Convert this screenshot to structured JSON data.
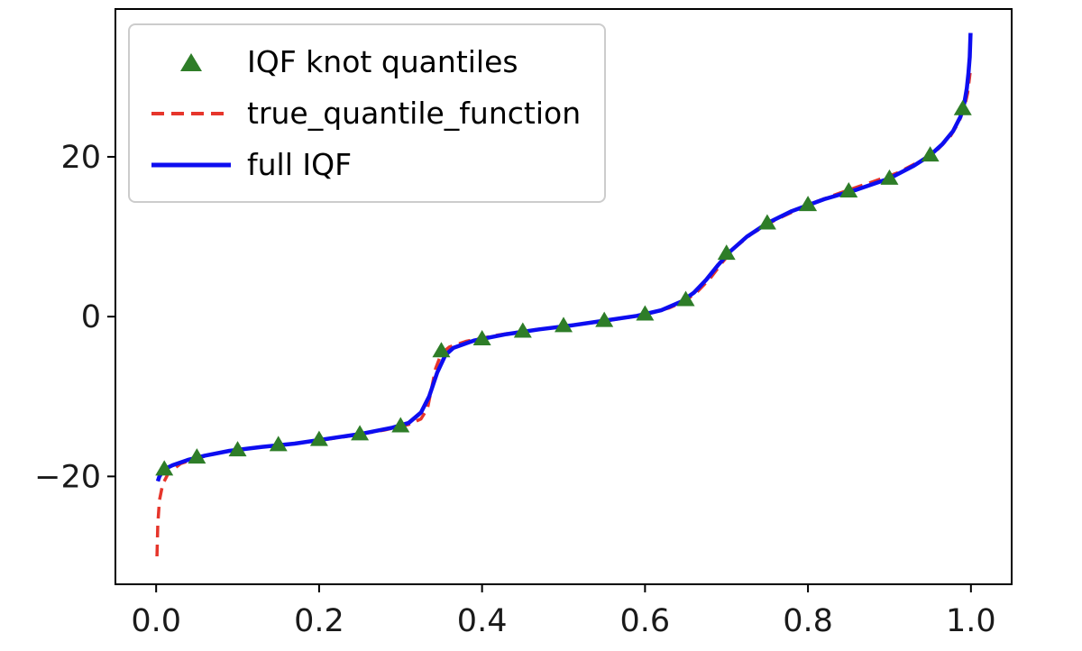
{
  "figure": {
    "background": "#ffffff",
    "frame_color": "#000000",
    "tick_label_color": "#1a1a1a"
  },
  "chart_data": {
    "type": "line",
    "title": "",
    "xlabel": "",
    "ylabel": "",
    "grid": false,
    "xlim": [
      -0.05,
      1.05
    ],
    "ylim": [
      -33.5,
      38.5
    ],
    "xticks": [
      0.0,
      0.2,
      0.4,
      0.6,
      0.8,
      1.0
    ],
    "xtick_labels": [
      "0.0",
      "0.2",
      "0.4",
      "0.6",
      "0.8",
      "1.0"
    ],
    "yticks": [
      -20,
      0,
      20
    ],
    "ytick_labels": [
      "−20",
      "0",
      "20"
    ],
    "legend": {
      "position": "upper left",
      "entries": [
        {
          "label": "IQF knot quantiles",
          "marker": "triangle"
        },
        {
          "label": "true_quantile_function",
          "marker": "dashed-line"
        },
        {
          "label": "full IQF",
          "marker": "solid-line"
        }
      ]
    },
    "series": [
      {
        "name": "IQF knot quantiles",
        "type": "scatter",
        "marker": "triangle",
        "color": "#2e7d28",
        "points": [
          [
            0.01,
            -19.1
          ],
          [
            0.05,
            -17.6
          ],
          [
            0.1,
            -16.7
          ],
          [
            0.15,
            -16.05
          ],
          [
            0.2,
            -15.4
          ],
          [
            0.25,
            -14.7
          ],
          [
            0.3,
            -13.7
          ],
          [
            0.35,
            -4.3
          ],
          [
            0.4,
            -2.8
          ],
          [
            0.45,
            -1.85
          ],
          [
            0.5,
            -1.15
          ],
          [
            0.55,
            -0.5
          ],
          [
            0.6,
            0.3
          ],
          [
            0.65,
            2.1
          ],
          [
            0.7,
            7.9
          ],
          [
            0.75,
            11.7
          ],
          [
            0.8,
            14.0
          ],
          [
            0.85,
            15.7
          ],
          [
            0.9,
            17.3
          ],
          [
            0.95,
            20.2
          ],
          [
            0.99,
            26.0
          ]
        ]
      },
      {
        "name": "true_quantile_function",
        "type": "line",
        "style": "dashed",
        "color": "#e6352b",
        "width": 3.5,
        "points": [
          [
            0.001,
            -30.0
          ],
          [
            0.002,
            -26.0
          ],
          [
            0.004,
            -23.0
          ],
          [
            0.008,
            -21.0
          ],
          [
            0.015,
            -19.6
          ],
          [
            0.03,
            -18.4
          ],
          [
            0.05,
            -17.7
          ],
          [
            0.08,
            -17.0
          ],
          [
            0.12,
            -16.4
          ],
          [
            0.16,
            -16.0
          ],
          [
            0.2,
            -15.5
          ],
          [
            0.24,
            -14.9
          ],
          [
            0.28,
            -14.2
          ],
          [
            0.31,
            -13.5
          ],
          [
            0.325,
            -12.8
          ],
          [
            0.333,
            -11.5
          ],
          [
            0.338,
            -9.0
          ],
          [
            0.343,
            -6.5
          ],
          [
            0.35,
            -4.6
          ],
          [
            0.36,
            -3.8
          ],
          [
            0.38,
            -3.1
          ],
          [
            0.42,
            -2.3
          ],
          [
            0.46,
            -1.7
          ],
          [
            0.5,
            -1.2
          ],
          [
            0.54,
            -0.7
          ],
          [
            0.58,
            -0.1
          ],
          [
            0.61,
            0.5
          ],
          [
            0.63,
            1.1
          ],
          [
            0.65,
            2.0
          ],
          [
            0.665,
            3.2
          ],
          [
            0.68,
            4.8
          ],
          [
            0.695,
            6.8
          ],
          [
            0.71,
            8.6
          ],
          [
            0.73,
            10.3
          ],
          [
            0.76,
            12.1
          ],
          [
            0.8,
            14.0
          ],
          [
            0.84,
            15.5
          ],
          [
            0.88,
            16.9
          ],
          [
            0.91,
            18.0
          ],
          [
            0.94,
            19.6
          ],
          [
            0.96,
            21.0
          ],
          [
            0.975,
            22.6
          ],
          [
            0.985,
            24.3
          ],
          [
            0.992,
            26.2
          ],
          [
            0.996,
            28.0
          ],
          [
            0.999,
            30.5
          ]
        ]
      },
      {
        "name": "full IQF",
        "type": "line",
        "style": "solid",
        "color": "#0d0df0",
        "width": 4.5,
        "points": [
          [
            0.002,
            -20.6
          ],
          [
            0.004,
            -20.0
          ],
          [
            0.01,
            -19.1
          ],
          [
            0.02,
            -18.6
          ],
          [
            0.04,
            -17.9
          ],
          [
            0.06,
            -17.4
          ],
          [
            0.09,
            -16.8
          ],
          [
            0.13,
            -16.3
          ],
          [
            0.17,
            -15.9
          ],
          [
            0.21,
            -15.3
          ],
          [
            0.25,
            -14.7
          ],
          [
            0.29,
            -13.9
          ],
          [
            0.31,
            -13.3
          ],
          [
            0.325,
            -12.0
          ],
          [
            0.335,
            -10.0
          ],
          [
            0.345,
            -7.0
          ],
          [
            0.355,
            -4.8
          ],
          [
            0.365,
            -3.9
          ],
          [
            0.39,
            -3.0
          ],
          [
            0.43,
            -2.2
          ],
          [
            0.47,
            -1.6
          ],
          [
            0.51,
            -1.1
          ],
          [
            0.55,
            -0.5
          ],
          [
            0.59,
            0.1
          ],
          [
            0.62,
            0.8
          ],
          [
            0.645,
            1.9
          ],
          [
            0.66,
            3.0
          ],
          [
            0.675,
            4.6
          ],
          [
            0.69,
            6.5
          ],
          [
            0.705,
            8.2
          ],
          [
            0.725,
            10.0
          ],
          [
            0.75,
            11.7
          ],
          [
            0.78,
            13.2
          ],
          [
            0.82,
            14.7
          ],
          [
            0.86,
            15.9
          ],
          [
            0.9,
            17.3
          ],
          [
            0.93,
            18.9
          ],
          [
            0.95,
            20.2
          ],
          [
            0.965,
            21.6
          ],
          [
            0.978,
            23.2
          ],
          [
            0.987,
            25.0
          ],
          [
            0.992,
            26.8
          ],
          [
            0.995,
            28.6
          ],
          [
            0.997,
            30.5
          ],
          [
            0.9985,
            32.5
          ],
          [
            0.9995,
            35.5
          ]
        ]
      }
    ]
  }
}
